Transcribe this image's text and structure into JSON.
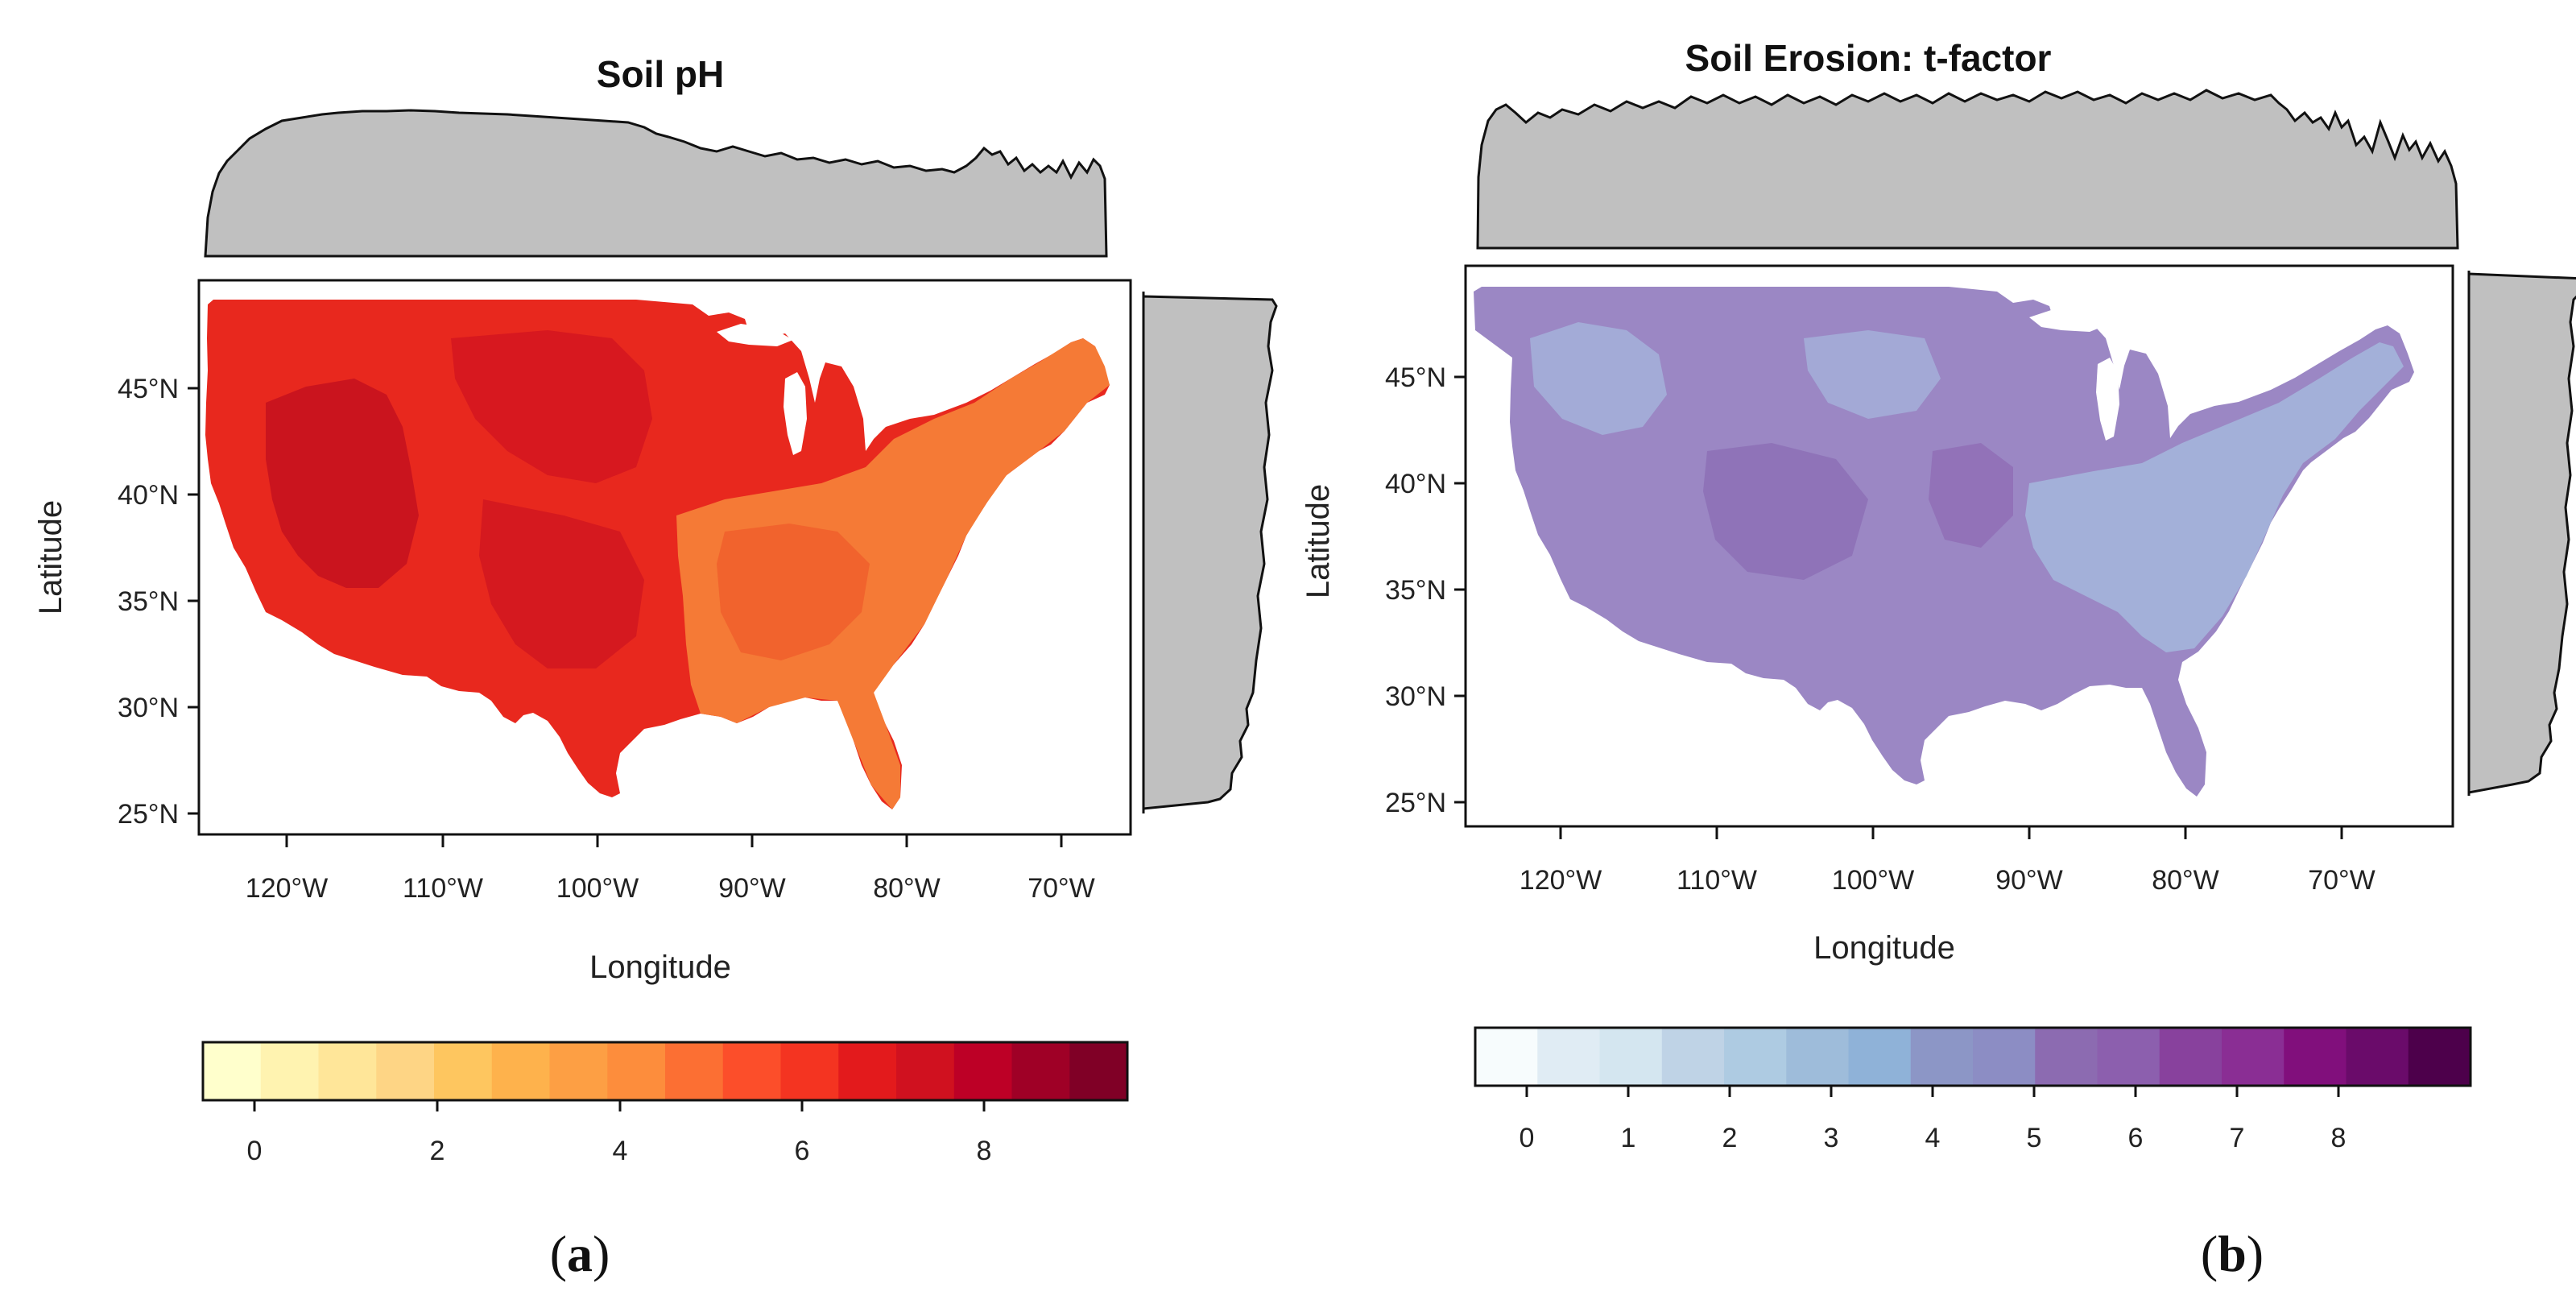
{
  "panels": [
    {
      "id": "a",
      "title": "Soil pH",
      "caption_letter": "a",
      "xlabel": "Longitude",
      "ylabel": "Latitude",
      "x_ticks": [
        "120°W",
        "110°W",
        "100°W",
        "90°W",
        "80°W",
        "70°W"
      ],
      "y_ticks": [
        "45°N",
        "40°N",
        "35°N",
        "30°N",
        "25°N"
      ],
      "legend_ticks": [
        "0",
        "2",
        "4",
        "6",
        "8"
      ],
      "legend_colors": [
        "#ffffcc",
        "#fff3b0",
        "#ffe699",
        "#fed585",
        "#fec65f",
        "#feb24c",
        "#fd9f44",
        "#fd8d3c",
        "#fc6f33",
        "#fc4e2a",
        "#f43421",
        "#e31a1c",
        "#d0111f",
        "#bd0026",
        "#9f0026",
        "#800026"
      ],
      "map_fill": "#e8281e",
      "map_fill_dark": "#c4101e",
      "map_fill_east": "#f57a36"
    },
    {
      "id": "b",
      "title": "Soil Erosion: t-factor",
      "caption_letter": "b",
      "xlabel": "Longitude",
      "ylabel": "Latitude",
      "x_ticks": [
        "120°W",
        "110°W",
        "100°W",
        "90°W",
        "80°W",
        "70°W"
      ],
      "y_ticks": [
        "45°N",
        "40°N",
        "35°N",
        "30°N",
        "25°N"
      ],
      "legend_ticks": [
        "0",
        "1",
        "2",
        "3",
        "4",
        "5",
        "6",
        "7",
        "8"
      ],
      "legend_colors": [
        "#f7fcfd",
        "#e0ecf4",
        "#d4e6f0",
        "#bfd3e6",
        "#aecbe2",
        "#9ebcda",
        "#8fb2d8",
        "#8c96c6",
        "#8c8dc4",
        "#8c6bb1",
        "#8c5fae",
        "#88419d",
        "#8a2e94",
        "#810f7c",
        "#6a0b6a",
        "#4d004b"
      ],
      "map_fill": "#9b87c4",
      "map_fill_dark": "#8d70b6",
      "map_fill_east": "#a4b7dd"
    }
  ]
}
